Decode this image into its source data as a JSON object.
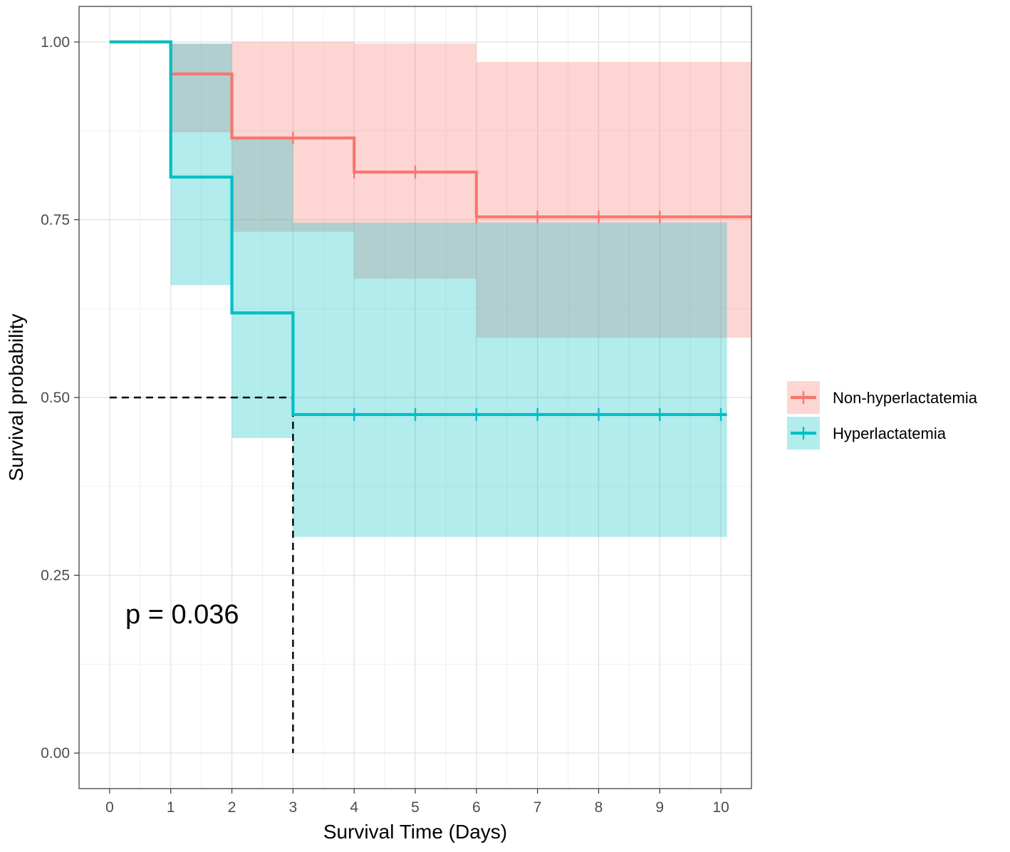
{
  "chart_data": {
    "type": "line",
    "title": "",
    "xlabel": "Survival Time (Days)",
    "ylabel": "Survival probability",
    "xlim": [
      -0.5,
      10.5
    ],
    "ylim": [
      -0.05,
      1.05
    ],
    "x_ticks": [
      0,
      1,
      2,
      3,
      4,
      5,
      6,
      7,
      8,
      9,
      10
    ],
    "x_tick_labels": [
      "0",
      "1",
      "2",
      "3",
      "4",
      "5",
      "6",
      "7",
      "8",
      "9",
      "10"
    ],
    "y_ticks": [
      0,
      0.25,
      0.5,
      0.75,
      1.0
    ],
    "y_tick_labels": [
      "0.00",
      "0.25",
      "0.50",
      "0.75",
      "1.00"
    ],
    "grid": true,
    "legend_position": "right",
    "annotation": "p = 0.036",
    "median_line": {
      "y": 0.5,
      "x": 3
    },
    "series": [
      {
        "name": "Non-hyperlactatemia",
        "color": "#F8766D",
        "band_color": "#F8766D",
        "x": [
          0,
          1,
          2,
          4,
          6
        ],
        "y": [
          1.0,
          0.955,
          0.865,
          0.817,
          0.754
        ],
        "lower": [
          1.0,
          0.873,
          0.733,
          0.667,
          0.584
        ],
        "upper": [
          1.0,
          0.997,
          1.0,
          0.998,
          0.972
        ],
        "end_x": 10.5,
        "censor_x": [
          3,
          4,
          5,
          6,
          7,
          8,
          9
        ]
      },
      {
        "name": "Hyperlactatemia",
        "color": "#00BFC4",
        "band_color": "#00BFC4",
        "x": [
          0,
          1,
          2,
          3
        ],
        "y": [
          1.0,
          0.81,
          0.619,
          0.476
        ],
        "lower": [
          1.0,
          0.658,
          0.443,
          0.304
        ],
        "upper": [
          1.0,
          0.998,
          0.865,
          0.746
        ],
        "end_x": 10.1,
        "censor_x": [
          4,
          5,
          6,
          7,
          8,
          9,
          10
        ]
      }
    ]
  }
}
